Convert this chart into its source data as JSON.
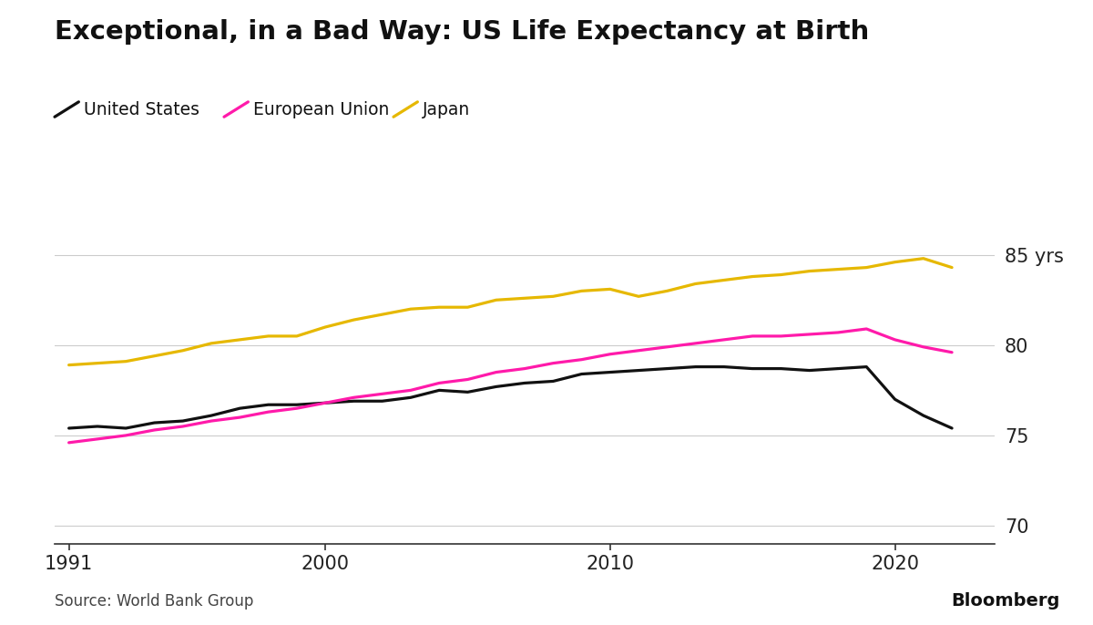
{
  "title": "Exceptional, in a Bad Way: US Life Expectancy at Birth",
  "title_fontsize": 21,
  "title_fontweight": "bold",
  "source_text": "Source: World Bank Group",
  "bloomberg_text": "Bloomberg",
  "background_color": "#ffffff",
  "legend_entries": [
    "United States",
    "European Union",
    "Japan"
  ],
  "line_colors": [
    "#111111",
    "#ff1aaa",
    "#e6b800"
  ],
  "line_width": 2.3,
  "years": [
    1991,
    1992,
    1993,
    1994,
    1995,
    1996,
    1997,
    1998,
    1999,
    2000,
    2001,
    2002,
    2003,
    2004,
    2005,
    2006,
    2007,
    2008,
    2009,
    2010,
    2011,
    2012,
    2013,
    2014,
    2015,
    2016,
    2017,
    2018,
    2019,
    2020,
    2021,
    2022
  ],
  "us": [
    75.4,
    75.5,
    75.4,
    75.7,
    75.8,
    76.1,
    76.5,
    76.7,
    76.7,
    76.8,
    76.9,
    76.9,
    77.1,
    77.5,
    77.4,
    77.7,
    77.9,
    78.0,
    78.4,
    78.5,
    78.6,
    78.7,
    78.8,
    78.8,
    78.7,
    78.7,
    78.6,
    78.7,
    78.8,
    77.0,
    76.1,
    75.4
  ],
  "eu": [
    74.6,
    74.8,
    75.0,
    75.3,
    75.5,
    75.8,
    76.0,
    76.3,
    76.5,
    76.8,
    77.1,
    77.3,
    77.5,
    77.9,
    78.1,
    78.5,
    78.7,
    79.0,
    79.2,
    79.5,
    79.7,
    79.9,
    80.1,
    80.3,
    80.5,
    80.5,
    80.6,
    80.7,
    80.9,
    80.3,
    79.9,
    79.6
  ],
  "japan": [
    78.9,
    79.0,
    79.1,
    79.4,
    79.7,
    80.1,
    80.3,
    80.5,
    80.5,
    81.0,
    81.4,
    81.7,
    82.0,
    82.1,
    82.1,
    82.5,
    82.6,
    82.7,
    83.0,
    83.1,
    82.7,
    83.0,
    83.4,
    83.6,
    83.8,
    83.9,
    84.1,
    84.2,
    84.3,
    84.6,
    84.8,
    84.3
  ],
  "ylim": [
    69.0,
    87.0
  ],
  "yticks": [
    70,
    75,
    80,
    85
  ],
  "ytick_labels": [
    "70",
    "75",
    "80",
    "85 yrs"
  ],
  "xlim": [
    1990.5,
    2023.5
  ],
  "xticks": [
    1991,
    2000,
    2010,
    2020
  ],
  "grid_color": "#cccccc",
  "grid_linewidth": 0.8
}
